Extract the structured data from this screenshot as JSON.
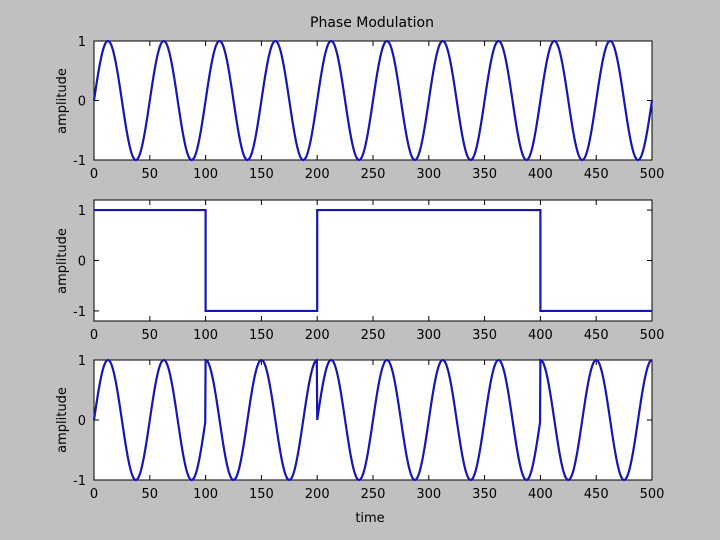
{
  "figure": {
    "background": "#c0c0c0",
    "axes_background": "#ffffff",
    "line_color": "#1515b8"
  },
  "chart_data": [
    {
      "type": "line",
      "title": "Phase Modulation",
      "xlabel": "",
      "ylabel": "amplitude",
      "xlim": [
        0,
        500
      ],
      "ylim": [
        -1,
        1
      ],
      "xticks": [
        0,
        50,
        100,
        150,
        200,
        250,
        300,
        350,
        400,
        450,
        500
      ],
      "yticks": [
        -1,
        0,
        1
      ],
      "grid": false,
      "series": [
        {
          "function": "sin(2*pi*t/50)",
          "x_range": [
            0,
            500
          ],
          "period": 50,
          "amplitude": 1
        }
      ]
    },
    {
      "type": "line",
      "title": "",
      "xlabel": "",
      "ylabel": "amplitude",
      "xlim": [
        0,
        500
      ],
      "ylim": [
        -1.2,
        1.2
      ],
      "xticks": [
        0,
        50,
        100,
        150,
        200,
        250,
        300,
        350,
        400,
        450,
        500
      ],
      "yticks": [
        -1,
        0,
        1
      ],
      "grid": false,
      "series": [
        {
          "x": [
            0,
            100,
            100,
            200,
            200,
            400,
            400,
            500
          ],
          "y": [
            1,
            1,
            -1,
            -1,
            1,
            1,
            -1,
            -1
          ]
        }
      ]
    },
    {
      "type": "line",
      "title": "",
      "xlabel": "time",
      "ylabel": "amplitude",
      "xlim": [
        0,
        500
      ],
      "ylim": [
        -1,
        1
      ],
      "xticks": [
        0,
        50,
        100,
        150,
        200,
        250,
        300,
        350,
        400,
        450,
        500
      ],
      "yticks": [
        -1,
        0,
        1
      ],
      "grid": false,
      "series": [
        {
          "function": "sin(2*pi*t/50 + phase(t))",
          "x_range": [
            0,
            500
          ],
          "period": 50,
          "amplitude": 1,
          "phase_segments": [
            {
              "from": 0,
              "to": 100,
              "phase_deg": 0
            },
            {
              "from": 100,
              "to": 200,
              "phase_deg": 90
            },
            {
              "from": 200,
              "to": 400,
              "phase_deg": 0
            },
            {
              "from": 400,
              "to": 500,
              "phase_deg": 90
            }
          ]
        }
      ]
    }
  ]
}
